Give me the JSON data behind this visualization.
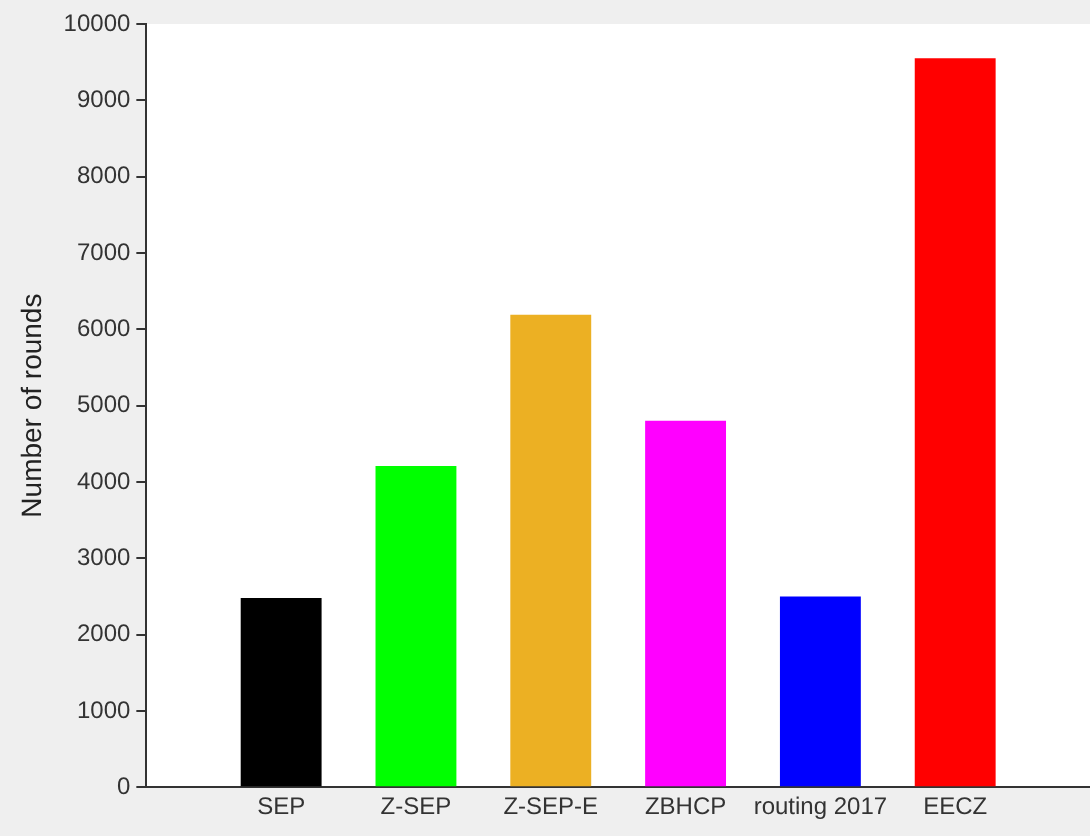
{
  "chart_data": {
    "type": "bar",
    "ylabel": "Number of rounds",
    "categories": [
      "SEP",
      "Z-SEP",
      "Z-SEP-E",
      "ZBHCP",
      "routing 2017",
      "EECZ"
    ],
    "values": [
      2480,
      4210,
      6190,
      4800,
      2500,
      9550
    ],
    "colors": [
      "#000000",
      "#00ff00",
      "#ecb023",
      "#ff00ff",
      "#0000ff",
      "#ff0000"
    ],
    "ylim": [
      0,
      10000
    ],
    "yticks": [
      0,
      1000,
      2000,
      3000,
      4000,
      5000,
      6000,
      7000,
      8000,
      9000,
      10000
    ],
    "grid": false,
    "legend": false
  }
}
